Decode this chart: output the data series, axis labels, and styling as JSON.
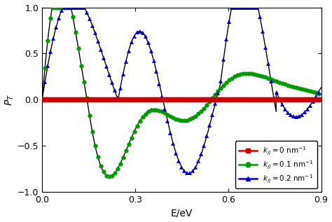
{
  "title": "",
  "xlabel": "E/eV",
  "ylabel": "$P_T$",
  "xlim": [
    0,
    0.9
  ],
  "ylim": [
    -1.0,
    1.0
  ],
  "xticks": [
    0.0,
    0.3,
    0.6,
    0.9
  ],
  "yticks": [
    -1.0,
    -0.5,
    0.0,
    0.5,
    1.0
  ],
  "background_color": "#ffffff",
  "line_color_k0": "#cc0000",
  "line_color_k1": "#009900",
  "line_color_k2": "#0000cc",
  "marker_color_k0": "#cc0000",
  "marker_color_k1": "#009900",
  "marker_color_k2": "#0000cc",
  "k0_label": "$k_{//} = 0\\ \\mathrm{nm}^{-1}$",
  "k1_label": "$k_{//} = 0.1\\ \\mathrm{nm}^{-1}$",
  "k2_label": "$k_{//} = 0.2\\ \\mathrm{nm}^{-1}$"
}
